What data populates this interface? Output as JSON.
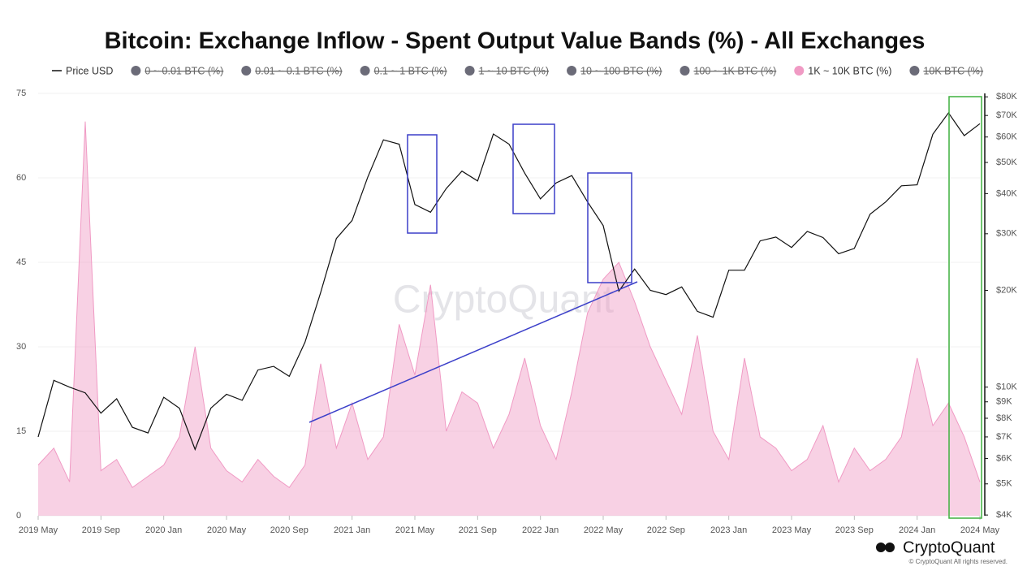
{
  "chart_data": {
    "type": "line",
    "title": "Bitcoin: Exchange Inflow - Spent Output Value Bands (%) - All Exchanges",
    "watermark": "CryptoQuant",
    "brand": "CryptoQuant",
    "copyright": "© CryptoQuant All rights reserved.",
    "categories": [
      "2019 May",
      null,
      null,
      null,
      "2019 Sep",
      null,
      null,
      null,
      "2020 Jan",
      null,
      null,
      null,
      "2020 May",
      null,
      null,
      null,
      "2020 Sep",
      null,
      null,
      null,
      "2021 Jan",
      null,
      null,
      null,
      "2021 May",
      null,
      null,
      null,
      "2021 Sep",
      null,
      null,
      null,
      "2022 Jan",
      null,
      null,
      null,
      "2022 May",
      null,
      null,
      null,
      "2022 Sep",
      null,
      null,
      null,
      "2023 Jan",
      null,
      null,
      null,
      "2023 May",
      null,
      null,
      null,
      "2023 Sep",
      null,
      null,
      null,
      "2024 Jan",
      null,
      null,
      null,
      "2024 May"
    ],
    "series": [
      {
        "name": "Price USD",
        "color": "#111111",
        "axis": "y2",
        "values": [
          7000,
          10500,
          10000,
          9600,
          8300,
          9200,
          7500,
          7200,
          9300,
          8600,
          6400,
          8600,
          9500,
          9100,
          11300,
          11600,
          10800,
          13800,
          19700,
          29000,
          33000,
          45000,
          58800,
          57000,
          37000,
          35000,
          41500,
          47000,
          43800,
          61300,
          57000,
          46300,
          38500,
          43200,
          45500,
          37700,
          31800,
          19900,
          23300,
          20000,
          19400,
          20500,
          17200,
          16500,
          23100,
          23100,
          28500,
          29300,
          27200,
          30500,
          29200,
          26000,
          27000,
          34500,
          37700,
          42300,
          42600,
          61200,
          71300,
          60600,
          66000
        ]
      },
      {
        "name": "1K ~ 10K BTC (%)",
        "color": "#f09ac4",
        "values": [
          9,
          12,
          6,
          70,
          8,
          10,
          5,
          7,
          9,
          14,
          30,
          12,
          8,
          6,
          10,
          7,
          5,
          9,
          27,
          12,
          20,
          10,
          14,
          34,
          25,
          41,
          15,
          22,
          20,
          12,
          18,
          28,
          16,
          10,
          22,
          36,
          42,
          45,
          38,
          30,
          24,
          18,
          32,
          15,
          10,
          28,
          14,
          12,
          8,
          10,
          16,
          6,
          12,
          8,
          10,
          14,
          28,
          16,
          20,
          14,
          6
        ]
      }
    ],
    "legend_hidden": [
      "0 ~ 0.01 BTC (%)",
      "0.01 ~ 0.1 BTC (%)",
      "0.1 ~ 1 BTC (%)",
      "1 ~ 10 BTC (%)",
      "10 ~ 100 BTC (%)",
      "100 ~ 1K BTC (%)",
      "10K BTC (%)"
    ],
    "legend_hidden_color": "#6b6b78",
    "ylim": [
      0,
      75
    ],
    "yticks": [
      0,
      15,
      30,
      45,
      60,
      75
    ],
    "y2lim": [
      3980,
      82000
    ],
    "y2_log": true,
    "y2ticks": [
      {
        "value": 4000,
        "label": "$4K"
      },
      {
        "value": 5000,
        "label": "$5K"
      },
      {
        "value": 6000,
        "label": "$6K"
      },
      {
        "value": 7000,
        "label": "$7K"
      },
      {
        "value": 8000,
        "label": "$8K"
      },
      {
        "value": 9000,
        "label": "$9K"
      },
      {
        "value": 10000,
        "label": "$10K"
      },
      {
        "value": 20000,
        "label": "$20K"
      },
      {
        "value": 30000,
        "label": "$30K"
      },
      {
        "value": 40000,
        "label": "$40K"
      },
      {
        "value": 50000,
        "label": "$50K"
      },
      {
        "value": 60000,
        "label": "$60K"
      },
      {
        "value": 70000,
        "label": "$70K"
      },
      {
        "value": 80000,
        "label": "$80K"
      }
    ],
    "grid": true
  }
}
